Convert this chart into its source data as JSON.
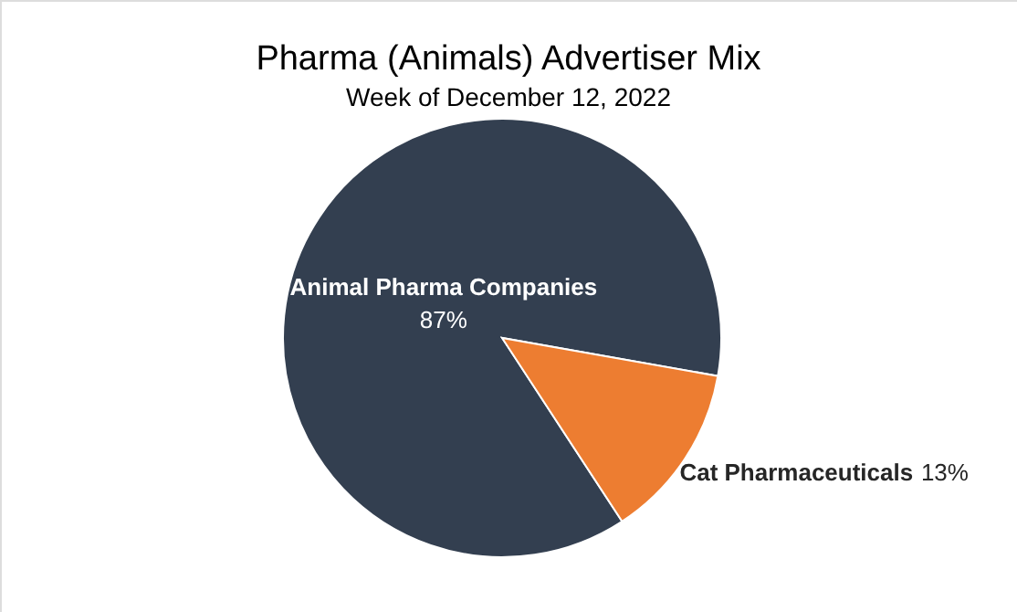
{
  "chart_data": {
    "type": "pie",
    "title": "Pharma (Animals) Advertiser Mix",
    "subtitle": "Week of December 12, 2022",
    "categories": [
      "Animal Pharma Companies",
      "Cat Pharmaceuticals"
    ],
    "values": [
      87,
      13
    ],
    "colors": [
      "#333f50",
      "#ed7d31"
    ],
    "value_labels": [
      "87%",
      "13%"
    ]
  }
}
